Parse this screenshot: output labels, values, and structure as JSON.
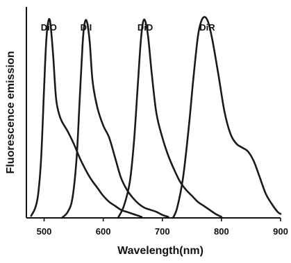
{
  "chart_data": {
    "type": "line",
    "title": "",
    "xlabel": "Wavelength(nm)",
    "ylabel": "Fluorescence emission",
    "xlim": [
      470,
      900
    ],
    "ylim": [
      0,
      1.05
    ],
    "xticks": [
      500,
      600,
      700,
      800,
      900
    ],
    "xtick_labels": [
      "500",
      "600",
      "700",
      "800",
      "900"
    ],
    "grid": false,
    "line_color": "#1a1a1a",
    "series": [
      {
        "name": "DiO",
        "x": [
          478,
          485,
          490,
          495,
          500,
          503,
          506,
          510,
          515,
          520,
          525,
          530,
          540,
          550,
          560,
          570,
          580,
          590,
          600,
          610,
          620,
          630,
          640,
          650,
          660,
          665
        ],
        "y": [
          0.01,
          0.05,
          0.12,
          0.3,
          0.65,
          0.85,
          0.96,
          0.98,
          0.82,
          0.6,
          0.52,
          0.48,
          0.43,
          0.37,
          0.3,
          0.24,
          0.19,
          0.15,
          0.11,
          0.08,
          0.06,
          0.04,
          0.03,
          0.02,
          0.01,
          0.005
        ]
      },
      {
        "name": "DiI",
        "x": [
          530,
          540,
          548,
          555,
          560,
          565,
          568,
          572,
          577,
          582,
          590,
          600,
          610,
          620,
          630,
          640,
          650,
          660,
          670,
          680,
          690,
          700,
          710
        ],
        "y": [
          0.0,
          0.03,
          0.1,
          0.3,
          0.58,
          0.86,
          0.96,
          0.98,
          0.88,
          0.68,
          0.55,
          0.46,
          0.4,
          0.3,
          0.2,
          0.14,
          0.1,
          0.07,
          0.05,
          0.04,
          0.03,
          0.015,
          0.005
        ]
      },
      {
        "name": "DiD",
        "x": [
          625,
          635,
          645,
          652,
          658,
          663,
          667,
          671,
          676,
          682,
          690,
          700,
          710,
          720,
          730,
          740,
          750,
          760,
          770,
          780,
          790,
          800
        ],
        "y": [
          0.0,
          0.06,
          0.18,
          0.38,
          0.64,
          0.86,
          0.97,
          0.98,
          0.9,
          0.72,
          0.52,
          0.4,
          0.31,
          0.24,
          0.18,
          0.14,
          0.11,
          0.08,
          0.06,
          0.04,
          0.02,
          0.005
        ]
      },
      {
        "name": "DiR",
        "x": [
          718,
          725,
          735,
          745,
          752,
          760,
          766,
          772,
          778,
          785,
          795,
          805,
          815,
          825,
          835,
          845,
          855,
          865,
          875,
          885,
          895,
          900
        ],
        "y": [
          0.0,
          0.05,
          0.2,
          0.46,
          0.68,
          0.9,
          0.98,
          1.0,
          0.97,
          0.88,
          0.71,
          0.53,
          0.42,
          0.37,
          0.35,
          0.33,
          0.28,
          0.2,
          0.12,
          0.07,
          0.03,
          0.02
        ]
      }
    ],
    "series_labels": [
      {
        "text": "DiO",
        "at_x": 508
      },
      {
        "text": "DiI",
        "at_x": 571
      },
      {
        "text": "DiD",
        "at_x": 671
      },
      {
        "text": "DiR",
        "at_x": 776
      }
    ]
  }
}
